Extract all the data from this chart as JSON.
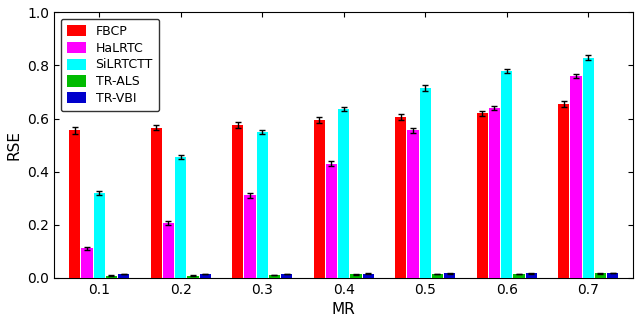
{
  "mr_values": [
    0.1,
    0.2,
    0.3,
    0.4,
    0.5,
    0.6,
    0.7
  ],
  "mr_labels": [
    "0.1",
    "0.2",
    "0.3",
    "0.4",
    "0.5",
    "0.6",
    "0.7"
  ],
  "methods": [
    "FBCP",
    "HaLRTC",
    "SiLRTCTT",
    "TR-ALS",
    "TR-VBI"
  ],
  "colors": [
    "#ff0000",
    "#ff00ff",
    "#00ffff",
    "#00bb00",
    "#0000cc"
  ],
  "bar_values": {
    "FBCP": [
      0.555,
      0.565,
      0.575,
      0.595,
      0.605,
      0.62,
      0.655
    ],
    "HaLRTC": [
      0.11,
      0.205,
      0.31,
      0.43,
      0.555,
      0.64,
      0.76
    ],
    "SiLRTCTT": [
      0.32,
      0.455,
      0.55,
      0.635,
      0.715,
      0.78,
      0.83
    ],
    "TR-ALS": [
      0.008,
      0.008,
      0.01,
      0.012,
      0.013,
      0.013,
      0.016
    ],
    "TR-VBI": [
      0.013,
      0.013,
      0.014,
      0.015,
      0.016,
      0.016,
      0.018
    ]
  },
  "error_values": {
    "FBCP": [
      0.012,
      0.01,
      0.012,
      0.01,
      0.012,
      0.01,
      0.01
    ],
    "HaLRTC": [
      0.006,
      0.008,
      0.008,
      0.008,
      0.01,
      0.008,
      0.008
    ],
    "SiLRTCTT": [
      0.008,
      0.008,
      0.008,
      0.008,
      0.01,
      0.008,
      0.008
    ],
    "TR-ALS": [
      0.001,
      0.001,
      0.001,
      0.001,
      0.001,
      0.001,
      0.001
    ],
    "TR-VBI": [
      0.001,
      0.001,
      0.001,
      0.001,
      0.001,
      0.001,
      0.001
    ]
  },
  "xlabel": "MR",
  "ylabel": "RSE",
  "ylim": [
    0,
    1.0
  ],
  "yticks": [
    0,
    0.2,
    0.4,
    0.6,
    0.8,
    1.0
  ],
  "legend_loc": "upper left",
  "group_width": 0.75,
  "figure_width": 6.4,
  "figure_height": 3.24,
  "dpi": 100
}
